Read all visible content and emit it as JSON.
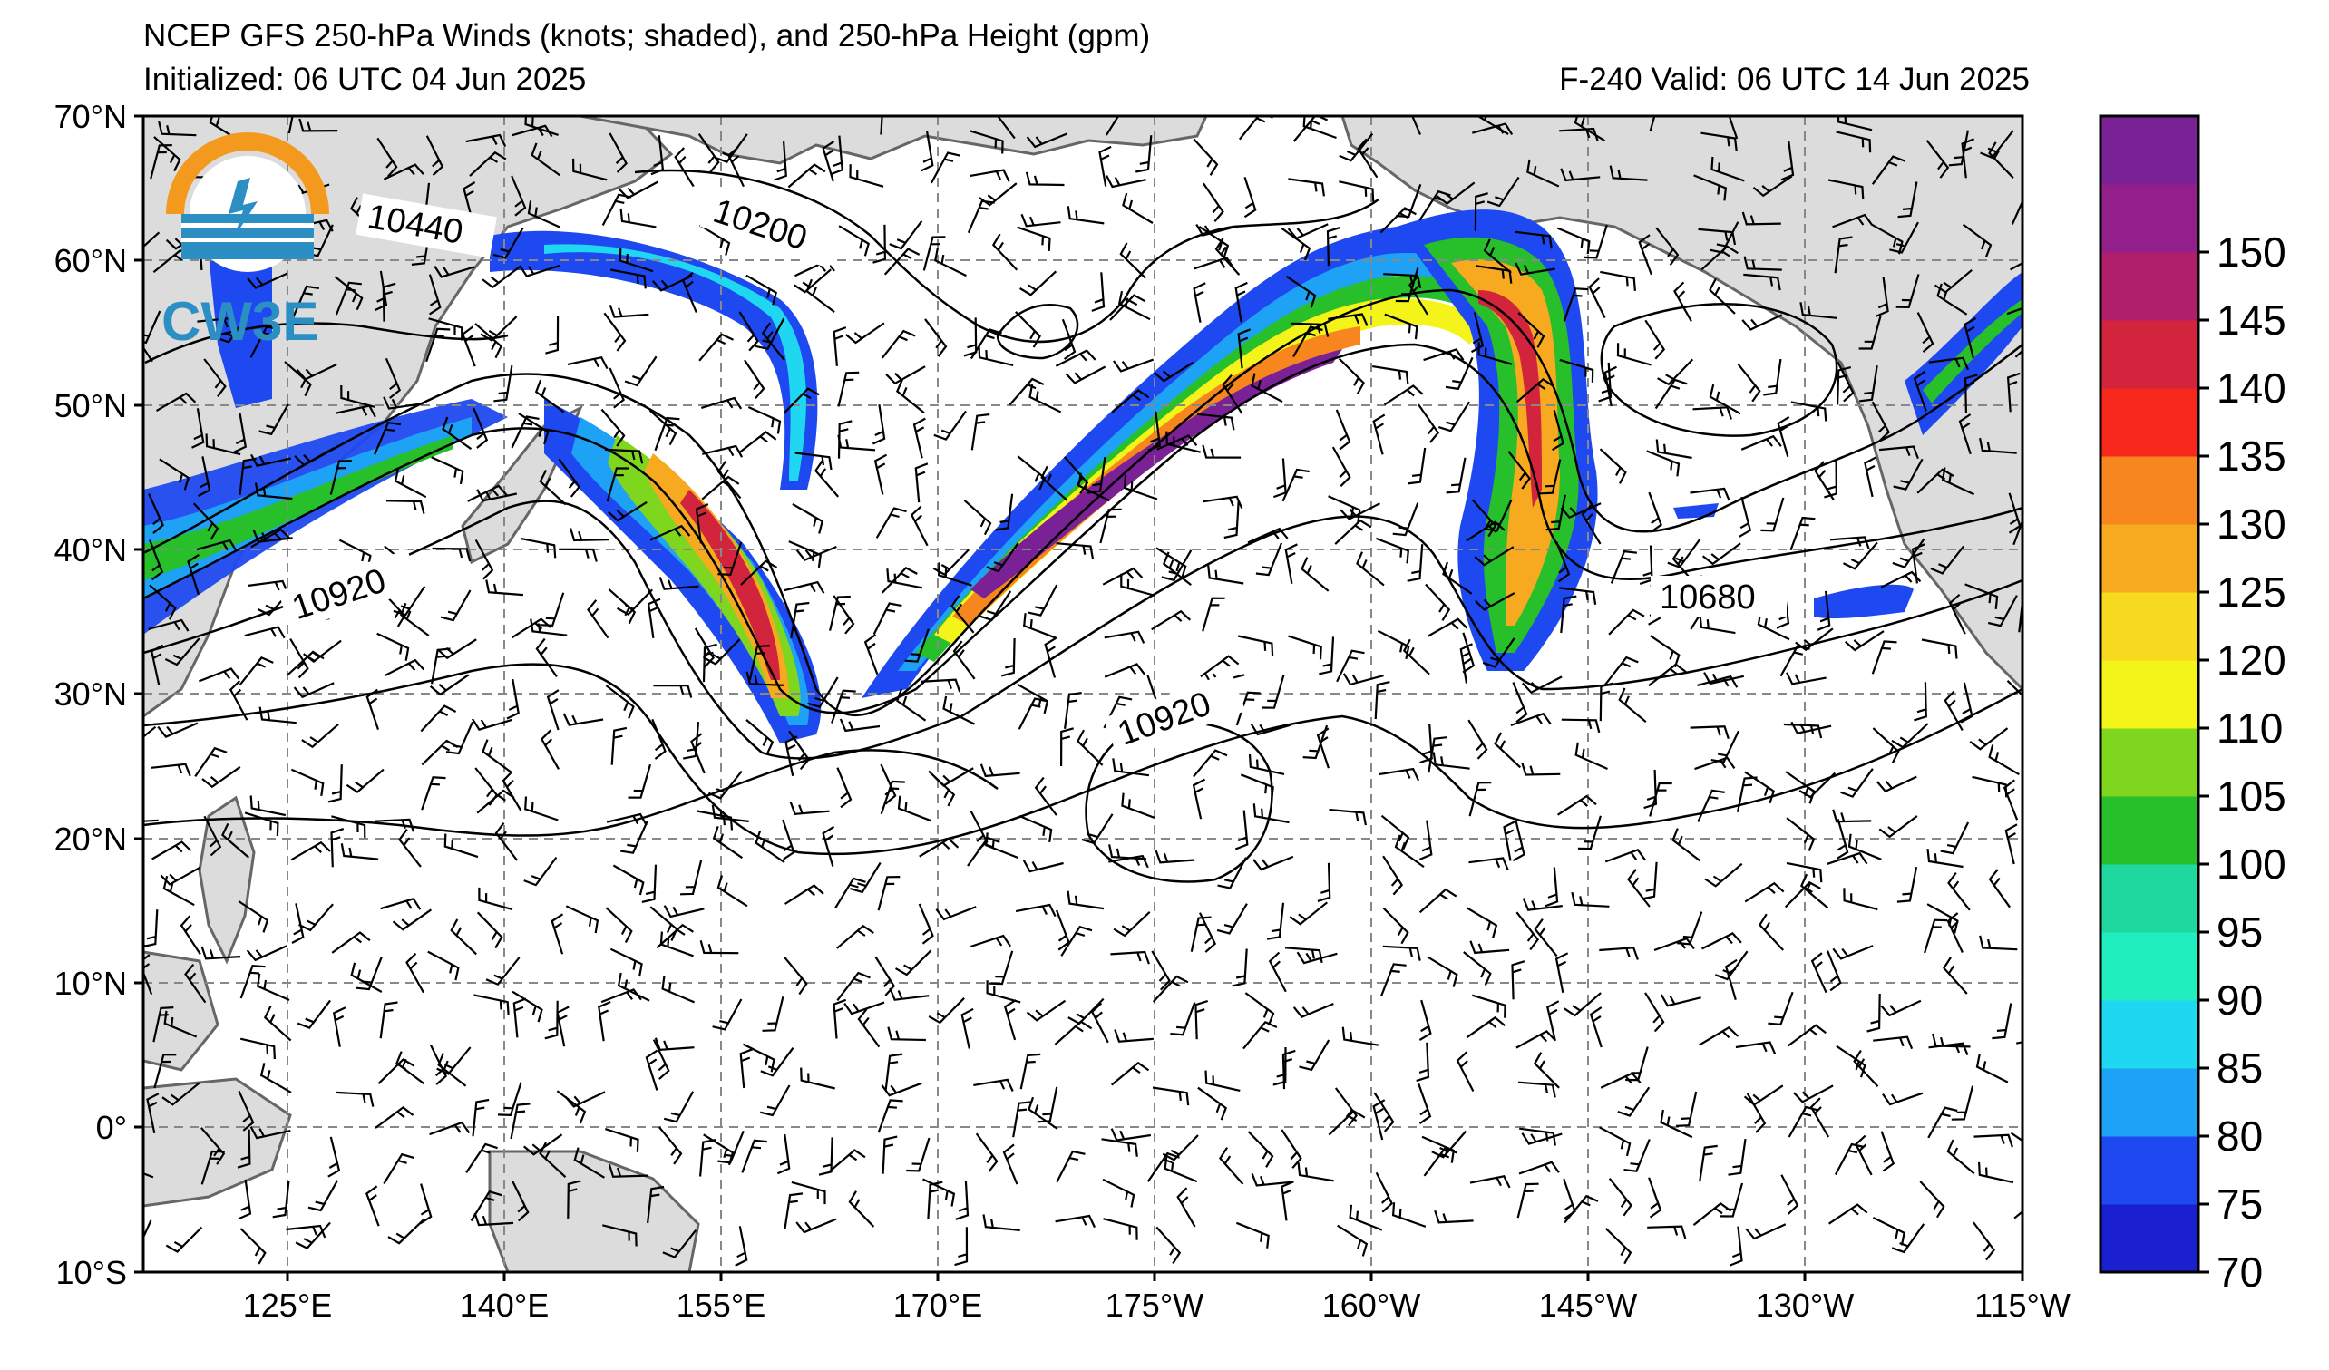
{
  "title": {
    "line1": "NCEP GFS 250-hPa Winds (knots; shaded), and 250-hPa Height (gpm)",
    "line2": "Initialized: 06 UTC 04 Jun 2025",
    "line2_right": "F-240  Valid: 06 UTC 14 Jun 2025"
  },
  "logo": {
    "text": "CW3E",
    "colors": {
      "ring": "#f39a1e",
      "blue": "#2c8fc4"
    }
  },
  "map": {
    "lat_ticks": [
      "70°N",
      "60°N",
      "50°N",
      "40°N",
      "30°N",
      "20°N",
      "10°N",
      "0°",
      "10°S"
    ],
    "lon_ticks": [
      "125°E",
      "140°E",
      "155°E",
      "170°E",
      "175°W",
      "160°W",
      "145°W",
      "130°W",
      "115°W"
    ],
    "contour_labels": [
      {
        "text": "10440"
      },
      {
        "text": "10200"
      },
      {
        "text": "10920"
      },
      {
        "text": "10920"
      },
      {
        "text": "10680"
      }
    ]
  },
  "colorbar": {
    "ticks": [
      "70",
      "75",
      "80",
      "85",
      "90",
      "95",
      "100",
      "105",
      "110",
      "120",
      "125",
      "130",
      "135",
      "140",
      "145",
      "150"
    ],
    "colors": [
      "#1a1fd0",
      "#1f49f0",
      "#1ea2f5",
      "#1fd7f0",
      "#20eebe",
      "#1fd8a0",
      "#27bf2a",
      "#7fd61f",
      "#f4f41a",
      "#f7d91f",
      "#f7a91f",
      "#f7861f",
      "#f7271c",
      "#d2243c",
      "#b0206a",
      "#93208a",
      "#7a2196"
    ]
  }
}
